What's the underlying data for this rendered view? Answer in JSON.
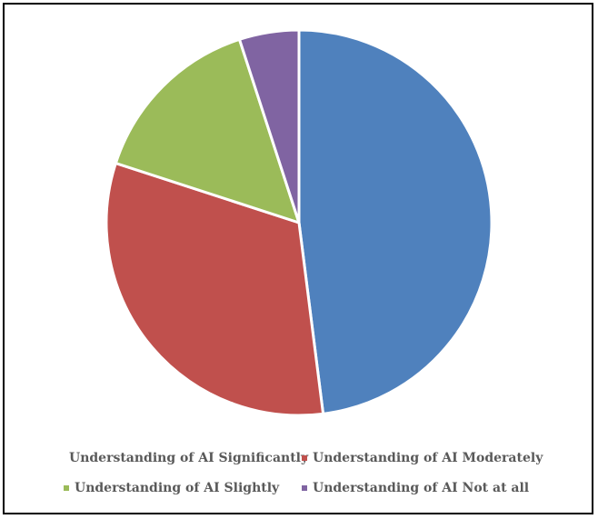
{
  "chart_data": {
    "type": "pie",
    "title": "",
    "slices": [
      {
        "label": "Understanding of AI Significantly",
        "value": 48,
        "color": "#4F81BD"
      },
      {
        "label": "Understanding of AI Moderately",
        "value": 32,
        "color": "#C0504D"
      },
      {
        "label": "Understanding of AI Slightly",
        "value": 15,
        "color": "#9BBB59"
      },
      {
        "label": "Understanding of AI Not at all",
        "value": 5,
        "color": "#8064A2"
      }
    ],
    "legend_position": "bottom"
  }
}
